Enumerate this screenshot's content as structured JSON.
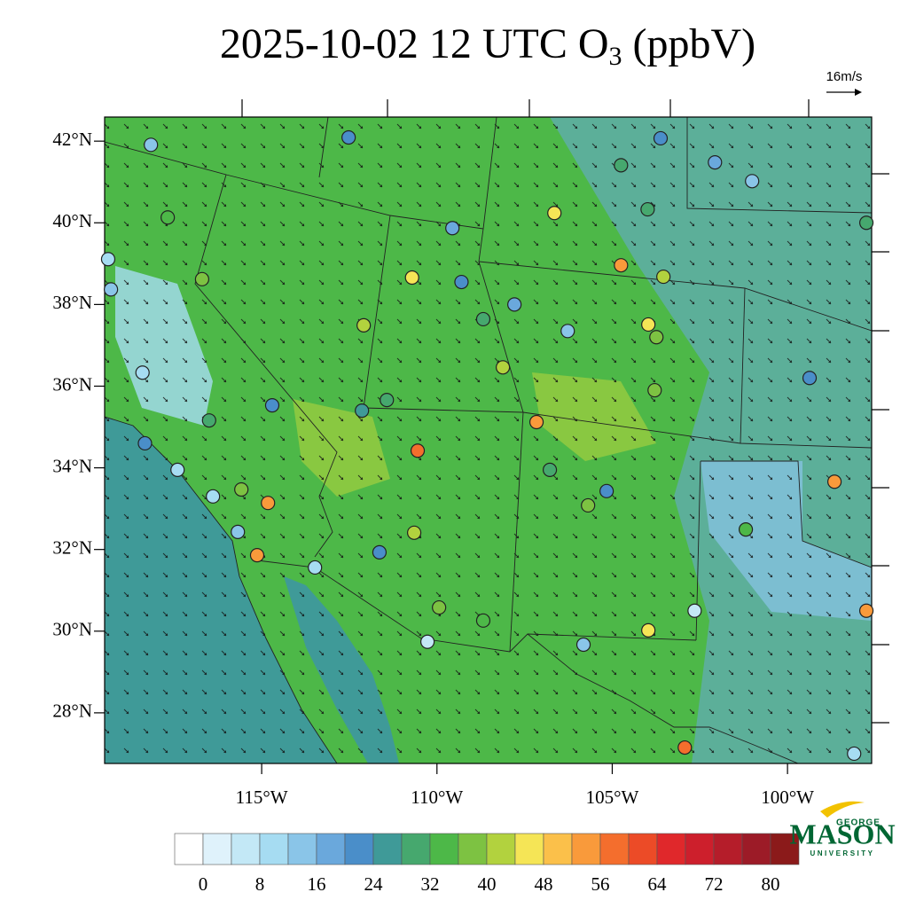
{
  "title": {
    "main": "2025-10-02 12 UTC O",
    "sub": "3",
    "unit": "(ppbV)"
  },
  "wind_scale": "16m/s",
  "map": {
    "lonlim": [
      -119.48,
      -97.6
    ],
    "latlim": [
      26.76,
      42.59
    ],
    "lonticks": [
      {
        "value": -115,
        "label": "115°W"
      },
      {
        "value": -110,
        "label": "110°W"
      },
      {
        "value": -105,
        "label": "105°W"
      },
      {
        "value": -100,
        "label": "100°W"
      }
    ],
    "latticks": [
      {
        "value": 42,
        "label": "42°N"
      },
      {
        "value": 40,
        "label": "40°N"
      },
      {
        "value": 38,
        "label": "38°N"
      },
      {
        "value": 36,
        "label": "36°N"
      },
      {
        "value": 34,
        "label": "34°N"
      },
      {
        "value": 32,
        "label": "32°N"
      },
      {
        "value": 30,
        "label": "30°N"
      },
      {
        "value": 28,
        "label": "28°N"
      }
    ]
  },
  "colorbar": {
    "levels": [
      0,
      4,
      8,
      12,
      16,
      20,
      24,
      28,
      32,
      36,
      40,
      44,
      48,
      52,
      56,
      60,
      64,
      68,
      72,
      76,
      80
    ],
    "colors": [
      "#ffffff",
      "#dff2fb",
      "#c3e8f6",
      "#a6dcf2",
      "#8ac5e8",
      "#6aa8dc",
      "#4a8ec9",
      "#3f9a98",
      "#46a86e",
      "#4db848",
      "#7dc242",
      "#b2d23e",
      "#f5e556",
      "#fbc04a",
      "#f99a3b",
      "#f46e2d",
      "#ec4b27",
      "#e0282b",
      "#cd1f2c",
      "#b51d2a",
      "#9c1b27",
      "#8b1a1a"
    ],
    "ticks": [
      0,
      8,
      16,
      24,
      32,
      40,
      48,
      56,
      64,
      72,
      80
    ]
  },
  "stations": [
    {
      "lon": -110.55,
      "lat": 34.42,
      "value": 58
    },
    {
      "lon": -102.93,
      "lat": 27.15,
      "value": 56
    },
    {
      "lon": -115.13,
      "lat": 31.86,
      "value": 55
    },
    {
      "lon": -114.82,
      "lat": 33.14,
      "value": 52
    },
    {
      "lon": -107.16,
      "lat": 35.12,
      "value": 52
    },
    {
      "lon": -104.75,
      "lat": 38.96,
      "value": 53
    },
    {
      "lon": -98.66,
      "lat": 33.66,
      "value": 53
    },
    {
      "lon": -97.75,
      "lat": 30.5,
      "value": 54
    },
    {
      "lon": -106.65,
      "lat": 40.24,
      "value": 47
    },
    {
      "lon": -103.97,
      "lat": 30.02,
      "value": 46
    },
    {
      "lon": -103.97,
      "lat": 37.51,
      "value": 46
    },
    {
      "lon": -103.54,
      "lat": 38.68,
      "value": 43
    },
    {
      "lon": -108.12,
      "lat": 36.46,
      "value": 43
    },
    {
      "lon": -110.71,
      "lat": 38.66,
      "value": 44
    },
    {
      "lon": -110.65,
      "lat": 32.41,
      "value": 42
    },
    {
      "lon": -115.58,
      "lat": 33.47,
      "value": 38
    },
    {
      "lon": -117.68,
      "lat": 40.13,
      "value": 34
    },
    {
      "lon": -116.5,
      "lat": 35.16,
      "value": 30
    },
    {
      "lon": -116.7,
      "lat": 38.62,
      "value": 36
    },
    {
      "lon": -114.7,
      "lat": 35.53,
      "value": 22
    },
    {
      "lon": -112.14,
      "lat": 35.4,
      "value": 26
    },
    {
      "lon": -118.16,
      "lat": 41.91,
      "value": 12
    },
    {
      "lon": -112.52,
      "lat": 42.09,
      "value": 20
    },
    {
      "lon": -103.62,
      "lat": 42.07,
      "value": 22
    },
    {
      "lon": -101.01,
      "lat": 41.02,
      "value": 14
    },
    {
      "lon": -97.75,
      "lat": 40.0,
      "value": 30
    },
    {
      "lon": -99.37,
      "lat": 36.2,
      "value": 20
    },
    {
      "lon": -119.38,
      "lat": 39.11,
      "value": 8
    },
    {
      "lon": -119.3,
      "lat": 38.37,
      "value": 12
    },
    {
      "lon": -118.4,
      "lat": 36.33,
      "value": 8
    },
    {
      "lon": -118.33,
      "lat": 34.6,
      "value": 20
    },
    {
      "lon": -117.4,
      "lat": 33.95,
      "value": 10
    },
    {
      "lon": -116.39,
      "lat": 33.3,
      "value": 8
    },
    {
      "lon": -115.68,
      "lat": 32.43,
      "value": 14
    },
    {
      "lon": -113.48,
      "lat": 31.56,
      "value": 10
    },
    {
      "lon": -110.27,
      "lat": 29.74,
      "value": 6
    },
    {
      "lon": -109.94,
      "lat": 30.58,
      "value": 36
    },
    {
      "lon": -108.68,
      "lat": 30.26,
      "value": 34
    },
    {
      "lon": -105.82,
      "lat": 29.67,
      "value": 12
    },
    {
      "lon": -102.65,
      "lat": 30.5,
      "value": 4
    },
    {
      "lon": -98.1,
      "lat": 27.0,
      "value": 8
    },
    {
      "lon": -101.19,
      "lat": 32.49,
      "value": 34
    },
    {
      "lon": -105.69,
      "lat": 33.08,
      "value": 38
    },
    {
      "lon": -105.16,
      "lat": 33.43,
      "value": 22
    },
    {
      "lon": -106.27,
      "lat": 37.35,
      "value": 14
    },
    {
      "lon": -108.68,
      "lat": 37.64,
      "value": 28
    },
    {
      "lon": -107.79,
      "lat": 38.0,
      "value": 16
    },
    {
      "lon": -109.56,
      "lat": 39.87,
      "value": 18
    },
    {
      "lon": -109.3,
      "lat": 38.55,
      "value": 20
    },
    {
      "lon": -104.75,
      "lat": 41.41,
      "value": 30
    },
    {
      "lon": -102.07,
      "lat": 41.48,
      "value": 16
    },
    {
      "lon": -103.99,
      "lat": 40.33,
      "value": 30
    },
    {
      "lon": -112.09,
      "lat": 37.49,
      "value": 40
    },
    {
      "lon": -111.43,
      "lat": 35.66,
      "value": 30
    },
    {
      "lon": -111.64,
      "lat": 31.93,
      "value": 20
    },
    {
      "lon": -106.78,
      "lat": 33.95,
      "value": 28
    },
    {
      "lon": -103.74,
      "lat": 37.2,
      "value": 38
    },
    {
      "lon": -103.79,
      "lat": 35.9,
      "value": 36
    }
  ],
  "logo": {
    "top": "GEORGE",
    "name": "MASON",
    "bottom": "UNIVERSITY"
  }
}
